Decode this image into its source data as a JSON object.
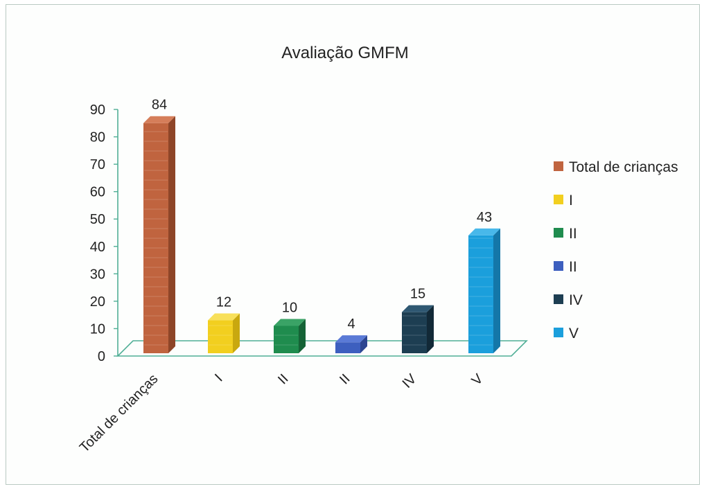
{
  "chart_data": {
    "type": "bar",
    "title": "Avaliação GMFM",
    "xlabel": "",
    "ylabel": "",
    "categories": [
      "Total de crianças",
      "I",
      "II",
      "II",
      "IV",
      "V"
    ],
    "values": [
      84,
      12,
      10,
      4,
      15,
      43
    ],
    "ylim": [
      0,
      90
    ],
    "yticks": [
      "0",
      "10",
      "20",
      "30",
      "40",
      "50",
      "60",
      "70",
      "80",
      "90"
    ],
    "data_labels": [
      "84",
      "12",
      "10",
      "4",
      "15",
      "43"
    ],
    "grid": false,
    "legend_position": "right",
    "legend": [
      "Total de crianças",
      "I",
      "II",
      "II",
      "IV",
      "V"
    ],
    "colors": [
      "#c0643f",
      "#f2cf1f",
      "#1f8c4e",
      "#3d5fbf",
      "#1d3e52",
      "#1b9fdc"
    ],
    "side_colors": [
      "#8e4528",
      "#c9a80f",
      "#156336",
      "#2b4590",
      "#122937",
      "#1477a8"
    ],
    "top_colors": [
      "#d57e5a",
      "#f8e05a",
      "#3aa366",
      "#5a7ad6",
      "#2f5872",
      "#48b8ea"
    ]
  }
}
